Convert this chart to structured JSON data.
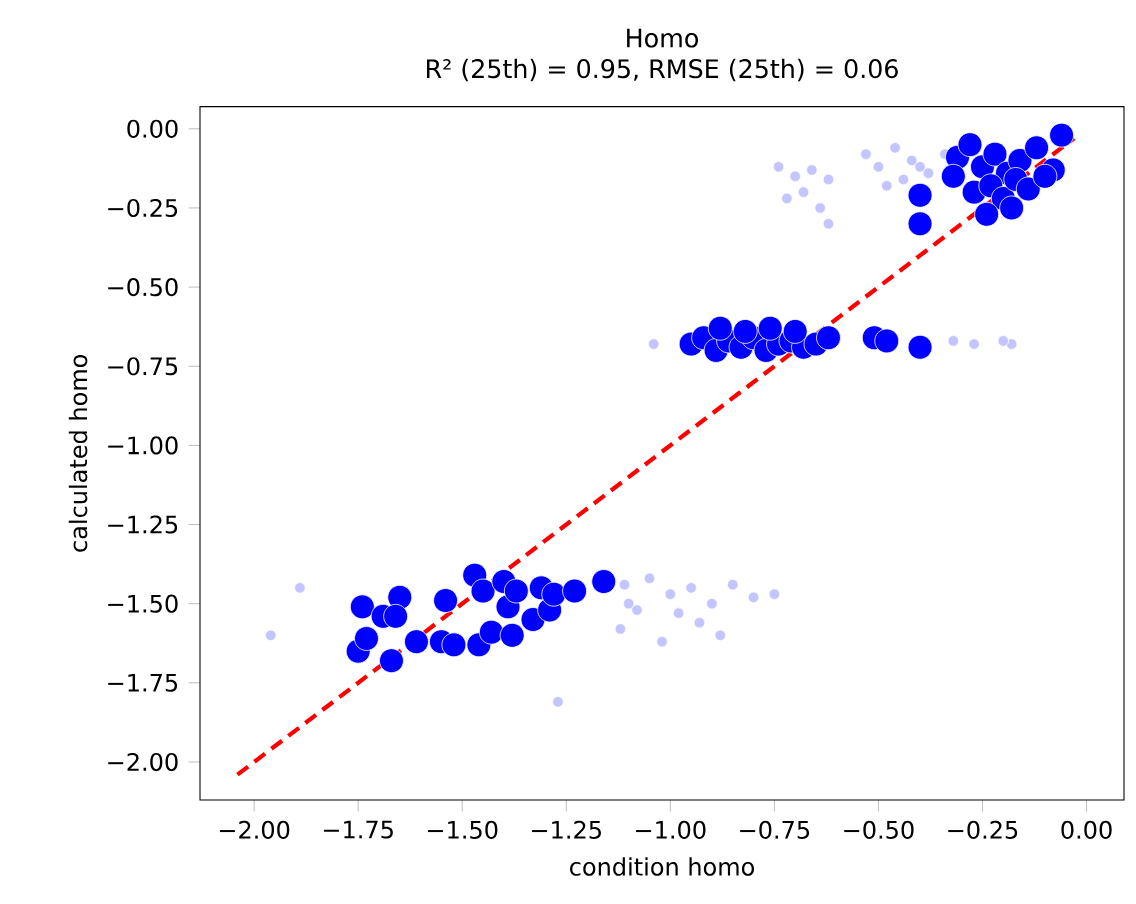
{
  "chart_data": {
    "type": "scatter",
    "title": "Homo",
    "subtitle": "R² (25th) = 0.95, RMSE (25th) = 0.06",
    "xlabel": "condition homo",
    "ylabel": "calculated homo",
    "xlim": [
      -2.13,
      0.09
    ],
    "ylim": [
      -2.12,
      0.07
    ],
    "xticks": [
      {
        "value": -2,
        "label": "−2.00"
      },
      {
        "value": -1.75,
        "label": "−1.75"
      },
      {
        "value": -1.5,
        "label": "−1.50"
      },
      {
        "value": -1.25,
        "label": "−1.25"
      },
      {
        "value": -1,
        "label": "−1.00"
      },
      {
        "value": -0.75,
        "label": "−0.75"
      },
      {
        "value": -0.5,
        "label": "−0.50"
      },
      {
        "value": -0.25,
        "label": "−0.25"
      },
      {
        "value": 0,
        "label": "0.00"
      }
    ],
    "yticks": [
      {
        "value": -2,
        "label": "−2.00"
      },
      {
        "value": -1.75,
        "label": "−1.75"
      },
      {
        "value": -1.5,
        "label": "−1.50"
      },
      {
        "value": -1.25,
        "label": "−1.25"
      },
      {
        "value": -1,
        "label": "−1.00"
      },
      {
        "value": -0.75,
        "label": "−0.75"
      },
      {
        "value": -0.5,
        "label": "−0.50"
      },
      {
        "value": -0.25,
        "label": "−0.25"
      },
      {
        "value": 0,
        "label": "0.00"
      }
    ],
    "grid": false,
    "marker": "circle",
    "series": [
      {
        "color": "#c4c4ff",
        "x": [
          -1.89,
          -1.96,
          -1.27,
          -1.11,
          -1.1,
          -1.05,
          -1.0,
          -0.95,
          -0.9,
          -0.85,
          -0.8,
          -0.75,
          -1.12,
          -1.02,
          -0.93,
          -0.88,
          -0.98,
          -1.08,
          -0.74,
          -0.7,
          -0.66,
          -0.62,
          -0.72,
          -0.64,
          -0.68,
          -0.62,
          -0.53,
          -0.5,
          -0.46,
          -0.42,
          -0.38,
          -0.34,
          -0.48,
          -0.44,
          -0.4,
          -1.04,
          -0.32,
          -0.27,
          -0.18,
          -0.2
        ],
        "values": [
          -1.45,
          -1.6,
          -1.81,
          -1.44,
          -1.5,
          -1.42,
          -1.47,
          -1.45,
          -1.5,
          -1.44,
          -1.48,
          -1.47,
          -1.58,
          -1.62,
          -1.56,
          -1.6,
          -1.53,
          -1.52,
          -0.12,
          -0.15,
          -0.13,
          -0.16,
          -0.22,
          -0.25,
          -0.2,
          -0.3,
          -0.08,
          -0.12,
          -0.06,
          -0.1,
          -0.14,
          -0.08,
          -0.18,
          -0.16,
          -0.12,
          -0.68,
          -0.67,
          -0.68,
          -0.68,
          -0.67
        ]
      },
      {
        "color": "#0000ff",
        "x": [
          -1.74,
          -1.75,
          -1.73,
          -1.67,
          -1.69,
          -1.65,
          -1.66,
          -1.61,
          -1.55,
          -1.54,
          -1.52,
          -1.47,
          -1.46,
          -1.45,
          -1.43,
          -1.4,
          -1.39,
          -1.38,
          -1.37,
          -1.33,
          -1.31,
          -1.29,
          -1.28,
          -1.23,
          -1.16,
          -0.95,
          -0.92,
          -0.89,
          -0.86,
          -0.83,
          -0.8,
          -0.77,
          -0.74,
          -0.71,
          -0.68,
          -0.65,
          -0.62,
          -0.88,
          -0.82,
          -0.76,
          -0.7,
          -0.51,
          -0.48,
          -0.4,
          -0.4,
          -0.4,
          -0.31,
          -0.32,
          -0.28,
          -0.25,
          -0.22,
          -0.19,
          -0.16,
          -0.12,
          -0.08,
          -0.06,
          -0.27,
          -0.23,
          -0.2,
          -0.17,
          -0.14,
          -0.24,
          -0.18,
          -0.1
        ],
        "values": [
          -1.51,
          -1.65,
          -1.61,
          -1.68,
          -1.54,
          -1.48,
          -1.54,
          -1.62,
          -1.62,
          -1.49,
          -1.63,
          -1.41,
          -1.63,
          -1.46,
          -1.59,
          -1.43,
          -1.51,
          -1.6,
          -1.46,
          -1.55,
          -1.45,
          -1.52,
          -1.47,
          -1.46,
          -1.43,
          -0.68,
          -0.66,
          -0.7,
          -0.67,
          -0.69,
          -0.66,
          -0.7,
          -0.68,
          -0.67,
          -0.69,
          -0.68,
          -0.66,
          -0.63,
          -0.64,
          -0.63,
          -0.64,
          -0.66,
          -0.67,
          -0.69,
          -0.21,
          -0.3,
          -0.09,
          -0.15,
          -0.05,
          -0.12,
          -0.08,
          -0.14,
          -0.1,
          -0.06,
          -0.13,
          -0.02,
          -0.2,
          -0.18,
          -0.22,
          -0.16,
          -0.19,
          -0.27,
          -0.25,
          -0.15
        ]
      },
      {
        "type": "line",
        "color": "#ff0000",
        "line_style": "dashed",
        "marker": "none",
        "x": [
          -2.04,
          -0.03
        ],
        "values": [
          -2.04,
          -0.03
        ]
      }
    ]
  }
}
